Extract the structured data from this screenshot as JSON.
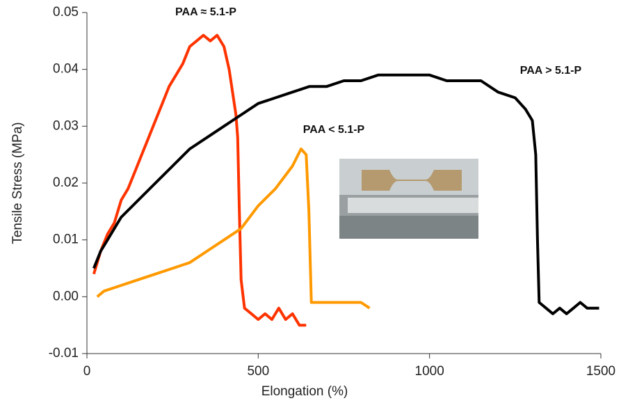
{
  "chart_data": {
    "type": "line",
    "x_label": "Elongation (%)",
    "y_label": "Tensile Stress (MPa)",
    "xlim": [
      0,
      1500
    ],
    "xticks": [
      0,
      500,
      1000,
      1500
    ],
    "ylim": [
      -0.01,
      0.05
    ],
    "yticks": [
      -0.01,
      {
        "value": 0,
        "label": "0.00"
      },
      0.01,
      0.02,
      0.03,
      0.04,
      0.05
    ],
    "series": [
      {
        "name": "PAA ≈ 5.1-P",
        "color": "#ff3300",
        "x": [
          20,
          40,
          60,
          80,
          100,
          120,
          140,
          160,
          180,
          200,
          220,
          240,
          260,
          280,
          300,
          320,
          340,
          360,
          380,
          400,
          415,
          425,
          435,
          440,
          445,
          450,
          460,
          480,
          500,
          520,
          540,
          560,
          580,
          600,
          620,
          640
        ],
        "values": [
          0.004,
          0.008,
          0.011,
          0.013,
          0.017,
          0.019,
          0.022,
          0.025,
          0.028,
          0.031,
          0.034,
          0.037,
          0.039,
          0.041,
          0.044,
          0.045,
          0.046,
          0.045,
          0.046,
          0.044,
          0.04,
          0.036,
          0.032,
          0.028,
          0.015,
          0.003,
          -0.002,
          -0.003,
          -0.004,
          -0.003,
          -0.004,
          -0.002,
          -0.004,
          -0.003,
          -0.005,
          -0.005
        ]
      },
      {
        "name": "PAA > 5.1-P",
        "color": "#000000",
        "x": [
          20,
          40,
          60,
          80,
          100,
          150,
          200,
          250,
          300,
          350,
          400,
          450,
          500,
          550,
          600,
          650,
          700,
          750,
          800,
          850,
          900,
          950,
          1000,
          1050,
          1100,
          1150,
          1200,
          1250,
          1280,
          1300,
          1310,
          1315,
          1320,
          1340,
          1360,
          1380,
          1400,
          1420,
          1440,
          1460,
          1480,
          1495
        ],
        "values": [
          0.005,
          0.008,
          0.01,
          0.012,
          0.014,
          0.017,
          0.02,
          0.023,
          0.026,
          0.028,
          0.03,
          0.032,
          0.034,
          0.035,
          0.036,
          0.037,
          0.037,
          0.038,
          0.038,
          0.039,
          0.039,
          0.039,
          0.039,
          0.038,
          0.038,
          0.038,
          0.036,
          0.035,
          0.033,
          0.031,
          0.025,
          0.01,
          -0.001,
          -0.002,
          -0.003,
          -0.002,
          -0.003,
          -0.002,
          -0.001,
          -0.002,
          -0.002,
          -0.002
        ]
      },
      {
        "name": "PAA < 5.1-P",
        "color": "#ff9900",
        "x": [
          30,
          50,
          100,
          150,
          200,
          250,
          300,
          350,
          400,
          450,
          500,
          550,
          600,
          625,
          640,
          648,
          655,
          680,
          720,
          760,
          800,
          825
        ],
        "values": [
          0.0,
          0.001,
          0.002,
          0.003,
          0.004,
          0.005,
          0.006,
          0.008,
          0.01,
          0.012,
          0.016,
          0.019,
          0.023,
          0.026,
          0.025,
          0.015,
          -0.001,
          -0.001,
          -0.001,
          -0.001,
          -0.001,
          -0.002
        ]
      }
    ]
  }
}
